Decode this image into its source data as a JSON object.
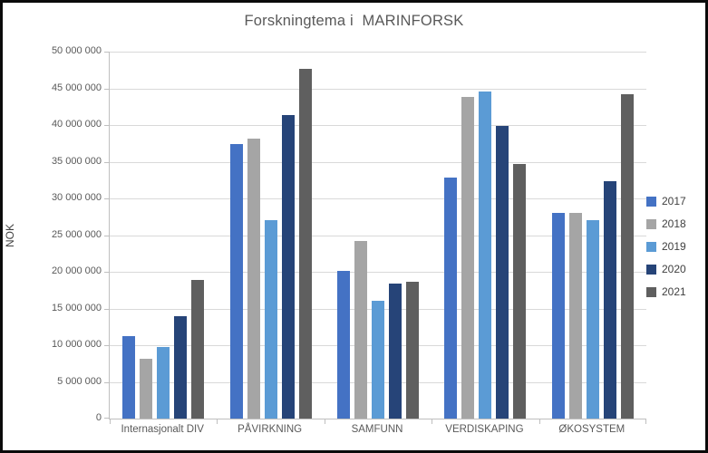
{
  "chart_data": {
    "type": "bar",
    "title": "Forskningtema i  MARINFORSK",
    "xlabel": "",
    "ylabel": "NOK",
    "ylim": [
      0,
      50000000
    ],
    "ytick_step": 5000000,
    "grid": true,
    "legend_position": "right",
    "y_tick_labels": [
      "0",
      "5 000 000",
      "10 000 000",
      "15 000 000",
      "20 000 000",
      "25 000 000",
      "30 000 000",
      "35 000 000",
      "40 000 000",
      "45 000 000",
      "50 000 000"
    ],
    "categories": [
      "Internasjonalt DIV",
      "PÅVIRKNING",
      "SAMFUNN",
      "VERDISKAPING",
      "ØKOSYSTEM"
    ],
    "series": [
      {
        "name": "2017",
        "color": "#4472C4",
        "values": [
          11200000,
          37400000,
          20100000,
          32900000,
          28000000
        ]
      },
      {
        "name": "2018",
        "color": "#A5A5A5",
        "values": [
          8100000,
          38200000,
          24200000,
          43800000,
          28000000
        ]
      },
      {
        "name": "2019",
        "color": "#5B9BD5",
        "values": [
          9800000,
          27100000,
          16100000,
          44600000,
          27100000
        ]
      },
      {
        "name": "2020",
        "color": "#264478",
        "values": [
          13900000,
          41300000,
          18400000,
          39900000,
          32400000
        ]
      },
      {
        "name": "2021",
        "color": "#5F5F5F",
        "values": [
          18900000,
          47600000,
          18700000,
          34700000,
          44200000
        ]
      }
    ]
  }
}
